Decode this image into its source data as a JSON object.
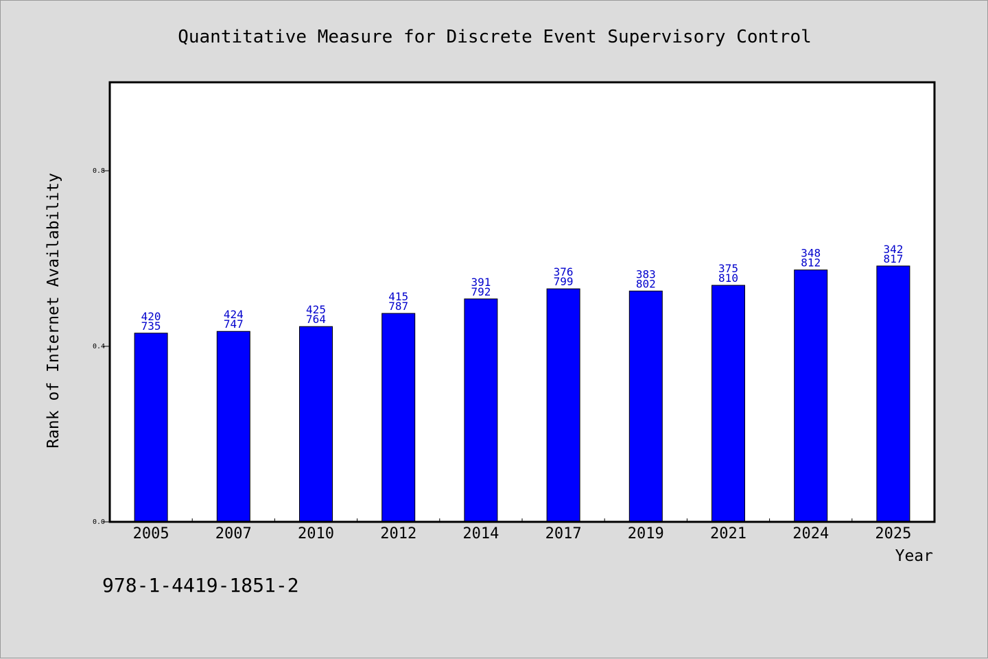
{
  "chart_data": {
    "type": "bar",
    "title": "Quantitative Measure for Discrete Event Supervisory Control",
    "xlabel": "Year",
    "ylabel": "Rank of Internet Availability",
    "categories": [
      "2005",
      "2007",
      "2010",
      "2012",
      "2014",
      "2017",
      "2019",
      "2021",
      "2024",
      "2025"
    ],
    "values": [
      0.43,
      0.434,
      0.445,
      0.475,
      0.508,
      0.531,
      0.526,
      0.539,
      0.574,
      0.583
    ],
    "data_labels_top": [
      "420",
      "424",
      "425",
      "415",
      "391",
      "376",
      "383",
      "375",
      "348",
      "342"
    ],
    "data_labels_bottom": [
      "735",
      "747",
      "764",
      "787",
      "792",
      "799",
      "802",
      "810",
      "812",
      "817"
    ],
    "ylim": [
      0,
      1.0
    ],
    "yticks": [
      0.0,
      0.4,
      0.8
    ],
    "ytick_labels": [
      "0.0",
      "0.4",
      "0.8"
    ],
    "bar_color": "#0000ff",
    "data_label_color": "#0000cc",
    "background_color": "#dcdcdc",
    "plot_background": "#ffffff",
    "grid": false
  },
  "annotation": {
    "isbn": "978-1-4419-1851-2"
  }
}
